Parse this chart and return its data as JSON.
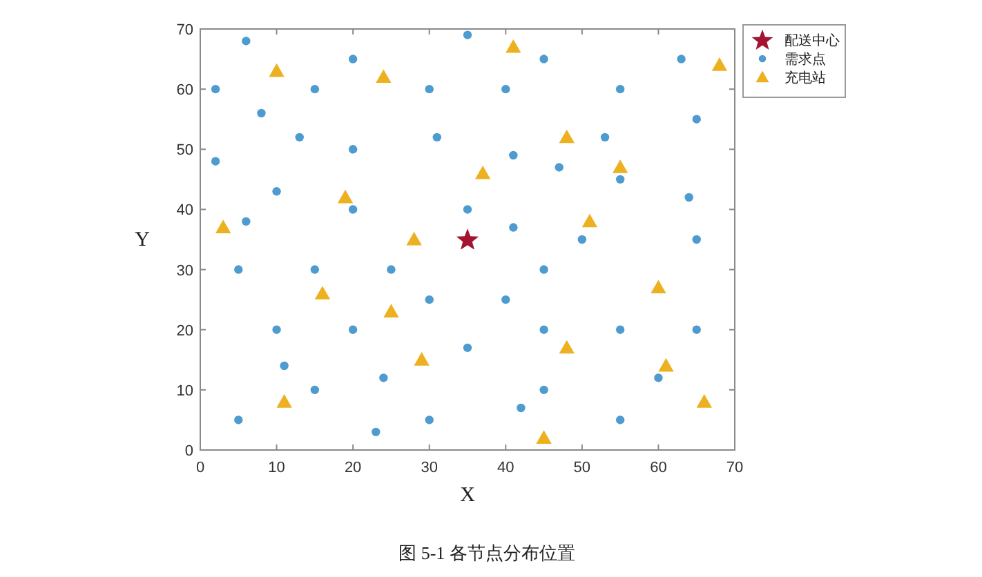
{
  "chart_data": {
    "type": "scatter",
    "xlabel": "X",
    "ylabel": "Y",
    "annotations": [
      "图 5-1 各节点分布位置"
    ],
    "xlim": [
      0,
      70
    ],
    "ylim": [
      0,
      70
    ],
    "xticks": [
      0,
      10,
      20,
      30,
      40,
      50,
      60,
      70
    ],
    "yticks": [
      0,
      10,
      20,
      30,
      40,
      50,
      60,
      70
    ],
    "legend": "top right",
    "series": [
      {
        "name": "配送中心",
        "color": "#a2142f",
        "marker": "star",
        "x": [
          35
        ],
        "values": [
          35
        ]
      },
      {
        "name": "需求点",
        "color": "#4d9bcf",
        "marker": "circle",
        "x": [
          2,
          6,
          2,
          8,
          13,
          15,
          20,
          20,
          10,
          6,
          20,
          30,
          31,
          35,
          45,
          63,
          40,
          55,
          65,
          53,
          41,
          47,
          55,
          64,
          35,
          41,
          50,
          65,
          5,
          15,
          25,
          30,
          10,
          20,
          11,
          15,
          24,
          5,
          23,
          30,
          45,
          40,
          45,
          55,
          65,
          35,
          60,
          45,
          42,
          55
        ],
        "values": [
          60,
          68,
          48,
          56,
          52,
          60,
          65,
          50,
          43,
          38,
          40,
          60,
          52,
          69,
          65,
          65,
          60,
          60,
          55,
          52,
          49,
          47,
          45,
          42,
          40,
          37,
          35,
          35,
          30,
          30,
          30,
          25,
          20,
          20,
          14,
          10,
          12,
          5,
          3,
          5,
          30,
          25,
          20,
          20,
          20,
          17,
          12,
          10,
          7,
          5
        ]
      },
      {
        "name": "充电站",
        "color": "#edb120",
        "marker": "triangle",
        "x": [
          10,
          3,
          24,
          19,
          28,
          41,
          68,
          48,
          55,
          37,
          51,
          16,
          25,
          29,
          11,
          60,
          48,
          61,
          66,
          45
        ],
        "values": [
          63,
          37,
          62,
          42,
          35,
          67,
          64,
          52,
          47,
          46,
          38,
          26,
          23,
          15,
          8,
          27,
          17,
          14,
          8,
          2
        ]
      }
    ]
  }
}
